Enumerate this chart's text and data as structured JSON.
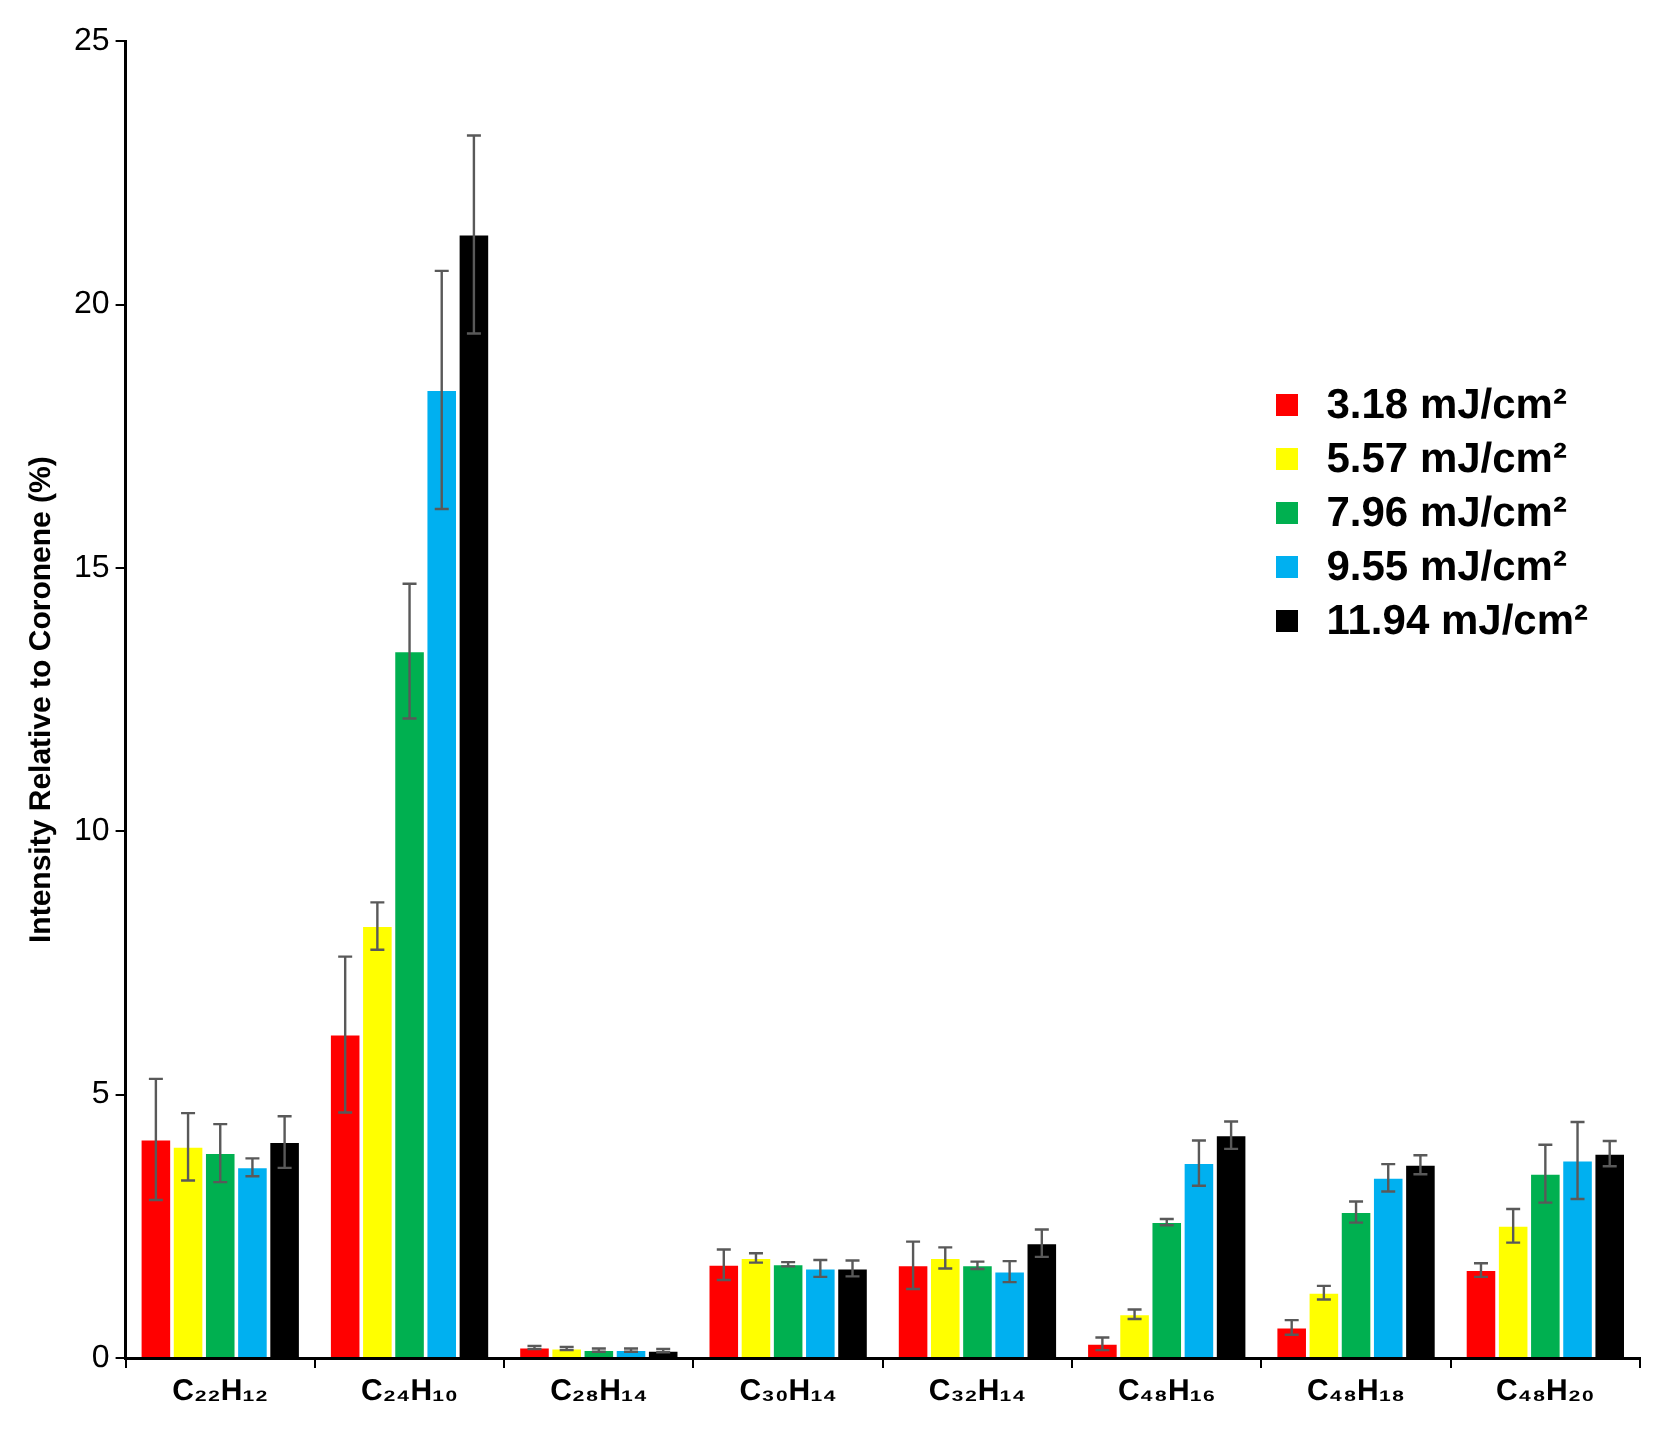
{
  "chart_data": {
    "type": "bar",
    "ylabel": "Intensity Relative to Coronene (%)",
    "categories": [
      "C₂₂H₁₂",
      "C₂₄H₁₀",
      "C₂₈H₁₄",
      "C₃₀H₁₄",
      "C₃₂H₁₄",
      "C₄₈H₁₆",
      "C₄₈H₁₈",
      "C₄₈H₂₀"
    ],
    "series": [
      {
        "name": "3.18 mJ/cm²",
        "color": "#ff0000",
        "values": [
          4.15,
          6.14,
          0.2,
          1.77,
          1.76,
          0.27,
          0.58,
          1.67
        ],
        "errors": [
          1.15,
          1.48,
          0.03,
          0.29,
          0.45,
          0.12,
          0.14,
          0.13
        ]
      },
      {
        "name": "5.57 mJ/cm²",
        "color": "#ffff00",
        "values": [
          4.01,
          8.2,
          0.18,
          1.9,
          1.9,
          0.83,
          1.24,
          2.51
        ],
        "errors": [
          0.64,
          0.45,
          0.03,
          0.09,
          0.2,
          0.09,
          0.13,
          0.32
        ]
      },
      {
        "name": "7.96 mJ/cm²",
        "color": "#00b050",
        "values": [
          3.89,
          13.42,
          0.15,
          1.78,
          1.76,
          2.58,
          2.77,
          3.5
        ],
        "errors": [
          0.55,
          1.28,
          0.03,
          0.04,
          0.07,
          0.06,
          0.2,
          0.55
        ]
      },
      {
        "name": "9.55 mJ/cm²",
        "color": "#00b0f0",
        "values": [
          3.62,
          18.38,
          0.15,
          1.7,
          1.64,
          3.7,
          3.42,
          3.75
        ],
        "errors": [
          0.17,
          2.26,
          0.03,
          0.16,
          0.2,
          0.43,
          0.26,
          0.73
        ]
      },
      {
        "name": "11.94 mJ/cm²",
        "color": "#000000",
        "values": [
          4.1,
          21.33,
          0.14,
          1.7,
          2.18,
          4.23,
          3.67,
          3.88
        ],
        "errors": [
          0.49,
          1.88,
          0.03,
          0.15,
          0.26,
          0.26,
          0.18,
          0.24
        ]
      }
    ],
    "ylim": [
      0,
      25
    ],
    "yticks": [
      0,
      5,
      10,
      15,
      20,
      25
    ],
    "grid": false,
    "legend": "top right"
  }
}
